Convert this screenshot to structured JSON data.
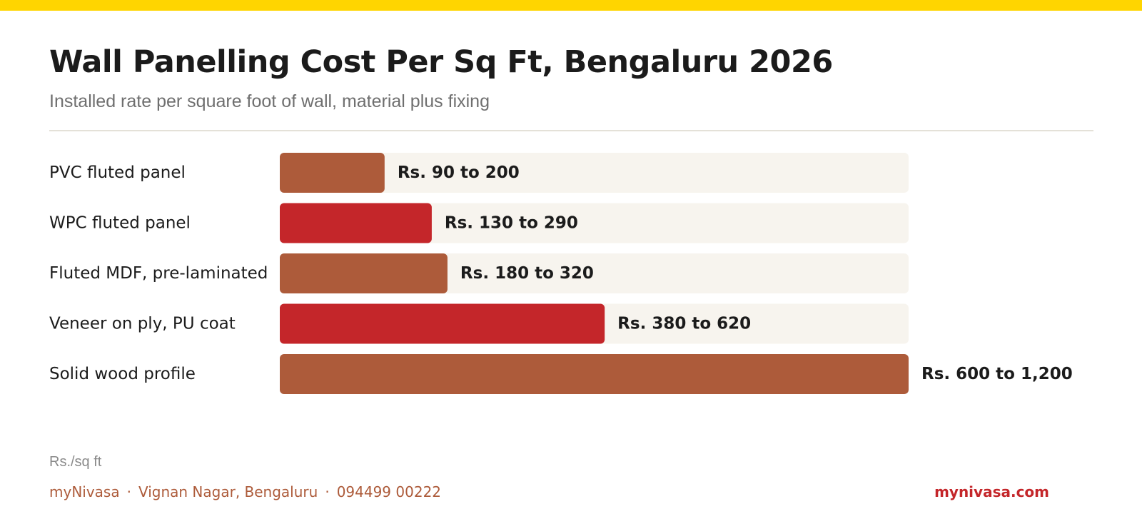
{
  "colors": {
    "accent_bar": "#ffd500",
    "bar_brown": "#ad5b3a",
    "bar_red": "#c4262a",
    "track": "#f7f4ee",
    "footer_brand": "#ad5b3a",
    "footer_site": "#c4262a"
  },
  "header": {
    "title": "Wall Panelling Cost Per Sq Ft, Bengaluru 2026",
    "subtitle": "Installed rate per square foot of wall, material plus fixing"
  },
  "chart_data": {
    "type": "bar",
    "orientation": "horizontal",
    "title": "Wall Panelling Cost Per Sq Ft, Bengaluru 2026",
    "subtitle": "Installed rate per square foot of wall, material plus fixing",
    "unit": "Rs./sq ft",
    "categories": [
      "PVC fluted panel",
      "WPC fluted panel",
      "Fluted MDF, pre-laminated",
      "Veneer on ply, PU coat",
      "Solid wood profile"
    ],
    "ranges": [
      [
        90,
        200
      ],
      [
        130,
        290
      ],
      [
        180,
        320
      ],
      [
        380,
        620
      ],
      [
        600,
        1200
      ]
    ],
    "value_labels": [
      "Rs. 90 to 200",
      "Rs. 130 to 290",
      "Rs. 180 to 320",
      "Rs. 380 to 620",
      "Rs. 600 to 1,200"
    ],
    "bar_colors": [
      "#ad5b3a",
      "#c4262a",
      "#ad5b3a",
      "#c4262a",
      "#ad5b3a"
    ],
    "xlim": [
      0,
      1200
    ],
    "grid": false,
    "legend": "none"
  },
  "footer": {
    "unit_note": "Rs./sq ft",
    "brand": "myNivasa",
    "location": "Vignan Nagar, Bengaluru",
    "phone": "094499 00222",
    "separator": "·",
    "website": "mynivasa.com"
  }
}
